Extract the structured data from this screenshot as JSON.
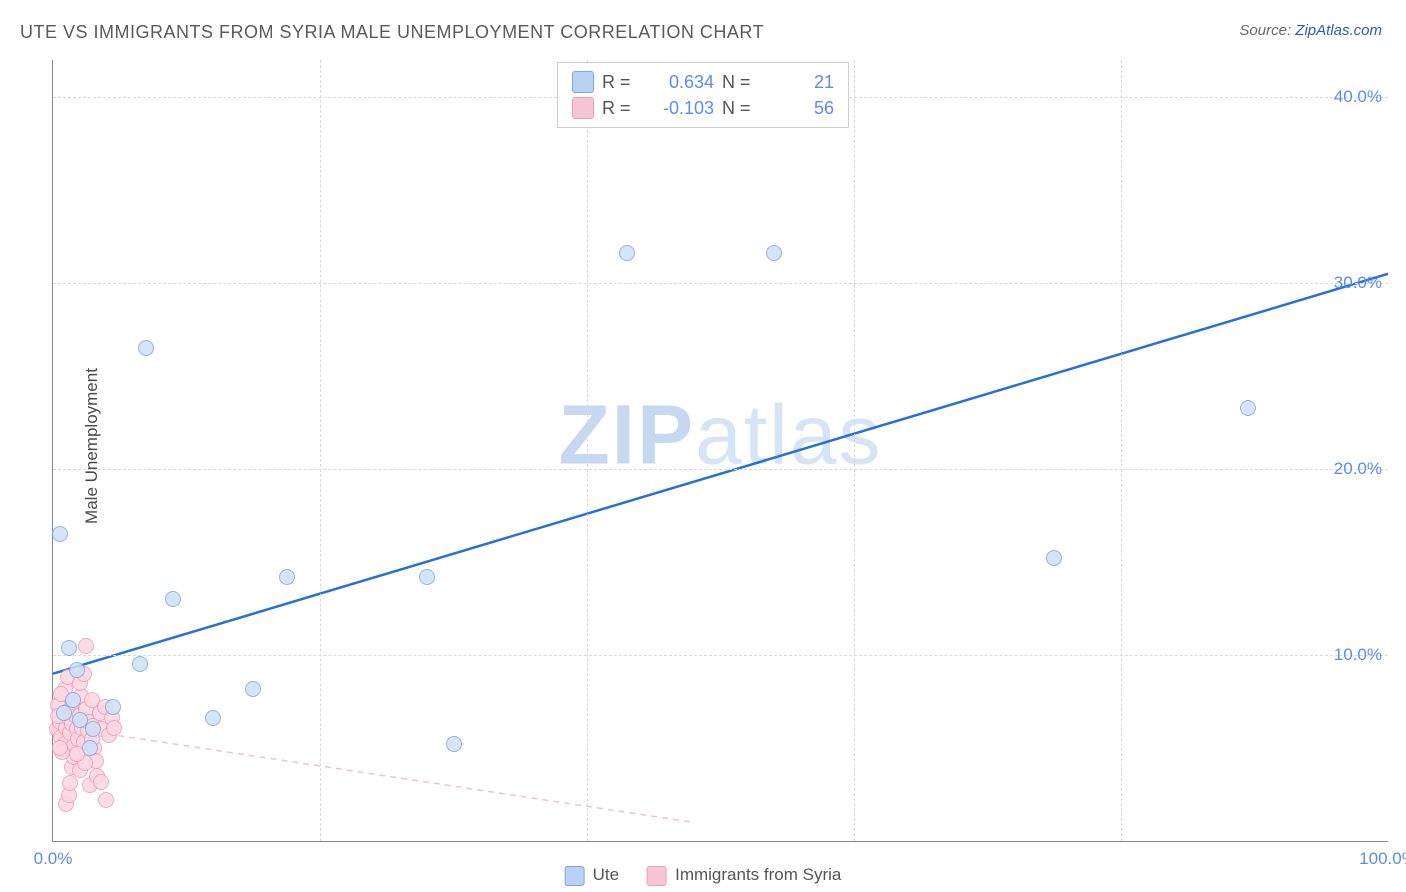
{
  "title": "UTE VS IMMIGRANTS FROM SYRIA MALE UNEMPLOYMENT CORRELATION CHART",
  "source_prefix": "Source: ",
  "source_link": "ZipAtlas.com",
  "y_axis_label": "Male Unemployment",
  "watermark_a": "ZIP",
  "watermark_b": "atlas",
  "chart": {
    "type": "scatter",
    "background_color": "#ffffff",
    "grid_color": "#d9d9d9",
    "axis_color": "#888888",
    "tick_color": "#5b8def",
    "xlim": [
      0,
      100
    ],
    "ylim": [
      0,
      42
    ],
    "xticks": [
      0.0,
      100.0
    ],
    "xtick_labels": [
      "0.0%",
      "100.0%"
    ],
    "yticks": [
      10.0,
      20.0,
      30.0,
      40.0
    ],
    "ytick_labels": [
      "10.0%",
      "20.0%",
      "30.0%",
      "40.0%"
    ],
    "vgrid_x": [
      20,
      40,
      60,
      80
    ],
    "marker_radius": 8,
    "series": [
      {
        "name": "Ute",
        "color_fill": "#cfe0f7",
        "color_stroke": "#7ea8e0",
        "swatch_color": "#b9d1f2",
        "R": "0.634",
        "N": "21",
        "trend": {
          "x1": 0,
          "y1": 9.0,
          "x2": 100,
          "y2": 30.5,
          "stroke": "#2a6fd6",
          "width": 2.5,
          "dash": "none"
        },
        "points": [
          {
            "x": 0.5,
            "y": 16.5
          },
          {
            "x": 7.0,
            "y": 26.5
          },
          {
            "x": 43.0,
            "y": 31.6
          },
          {
            "x": 54.0,
            "y": 31.6
          },
          {
            "x": 75.0,
            "y": 15.2
          },
          {
            "x": 89.5,
            "y": 23.3
          },
          {
            "x": 17.5,
            "y": 14.2
          },
          {
            "x": 28.0,
            "y": 14.2
          },
          {
            "x": 9.0,
            "y": 13.0
          },
          {
            "x": 1.2,
            "y": 10.4
          },
          {
            "x": 1.8,
            "y": 9.2
          },
          {
            "x": 6.5,
            "y": 9.5
          },
          {
            "x": 15.0,
            "y": 8.2
          },
          {
            "x": 2.0,
            "y": 6.5
          },
          {
            "x": 4.5,
            "y": 7.2
          },
          {
            "x": 12.0,
            "y": 6.6
          },
          {
            "x": 3.0,
            "y": 6.0
          },
          {
            "x": 2.8,
            "y": 5.0
          },
          {
            "x": 30.0,
            "y": 5.2
          },
          {
            "x": 0.8,
            "y": 6.9
          },
          {
            "x": 1.5,
            "y": 7.6
          }
        ]
      },
      {
        "name": "Immigrants from Syria",
        "color_fill": "#fbd7e2",
        "color_stroke": "#ef9db6",
        "swatch_color": "#f7c6d6",
        "R": "-0.103",
        "N": "56",
        "trend": {
          "x1": 0,
          "y1": 6.2,
          "x2": 48,
          "y2": 1.0,
          "stroke": "#eec3d0",
          "width": 1.5,
          "dash": "6 5"
        },
        "points": [
          {
            "x": 0.3,
            "y": 6.0
          },
          {
            "x": 0.5,
            "y": 6.4
          },
          {
            "x": 0.6,
            "y": 5.6
          },
          {
            "x": 0.8,
            "y": 6.9
          },
          {
            "x": 0.4,
            "y": 7.3
          },
          {
            "x": 0.9,
            "y": 5.2
          },
          {
            "x": 1.0,
            "y": 6.1
          },
          {
            "x": 1.1,
            "y": 7.0
          },
          {
            "x": 1.2,
            "y": 6.6
          },
          {
            "x": 1.3,
            "y": 5.8
          },
          {
            "x": 1.4,
            "y": 6.3
          },
          {
            "x": 1.5,
            "y": 7.4
          },
          {
            "x": 1.6,
            "y": 5.1
          },
          {
            "x": 1.7,
            "y": 6.7
          },
          {
            "x": 1.8,
            "y": 6.0
          },
          {
            "x": 1.9,
            "y": 5.5
          },
          {
            "x": 2.0,
            "y": 6.8
          },
          {
            "x": 2.1,
            "y": 7.8
          },
          {
            "x": 2.2,
            "y": 6.1
          },
          {
            "x": 2.3,
            "y": 5.3
          },
          {
            "x": 2.4,
            "y": 6.5
          },
          {
            "x": 2.5,
            "y": 7.1
          },
          {
            "x": 2.6,
            "y": 5.9
          },
          {
            "x": 2.7,
            "y": 6.4
          },
          {
            "x": 2.8,
            "y": 3.0
          },
          {
            "x": 2.9,
            "y": 7.6
          },
          {
            "x": 3.0,
            "y": 6.2
          },
          {
            "x": 3.1,
            "y": 5.0
          },
          {
            "x": 3.3,
            "y": 3.5
          },
          {
            "x": 3.5,
            "y": 6.9
          },
          {
            "x": 3.7,
            "y": 6.0
          },
          {
            "x": 3.9,
            "y": 7.2
          },
          {
            "x": 4.0,
            "y": 2.2
          },
          {
            "x": 4.2,
            "y": 5.7
          },
          {
            "x": 4.4,
            "y": 6.6
          },
          {
            "x": 4.6,
            "y": 6.1
          },
          {
            "x": 1.0,
            "y": 2.0
          },
          {
            "x": 1.2,
            "y": 2.5
          },
          {
            "x": 1.4,
            "y": 4.0
          },
          {
            "x": 1.6,
            "y": 4.5
          },
          {
            "x": 0.7,
            "y": 4.8
          },
          {
            "x": 0.9,
            "y": 8.2
          },
          {
            "x": 1.1,
            "y": 8.8
          },
          {
            "x": 2.5,
            "y": 10.5
          },
          {
            "x": 2.0,
            "y": 8.5
          },
          {
            "x": 2.3,
            "y": 9.0
          },
          {
            "x": 0.5,
            "y": 5.0
          },
          {
            "x": 0.4,
            "y": 6.7
          },
          {
            "x": 3.2,
            "y": 4.3
          },
          {
            "x": 3.6,
            "y": 3.2
          },
          {
            "x": 2.0,
            "y": 3.8
          },
          {
            "x": 2.4,
            "y": 4.2
          },
          {
            "x": 1.3,
            "y": 3.1
          },
          {
            "x": 0.6,
            "y": 7.9
          },
          {
            "x": 1.8,
            "y": 4.7
          },
          {
            "x": 2.9,
            "y": 5.5
          }
        ]
      }
    ],
    "legend_top_labels": {
      "R": "R =",
      "N": "N ="
    },
    "legend_bottom": [
      {
        "label": "Ute",
        "swatch": "#b9d1f2",
        "border": "#7ea8e0"
      },
      {
        "label": "Immigrants from Syria",
        "swatch": "#f7c6d6",
        "border": "#ef9db6"
      }
    ]
  }
}
